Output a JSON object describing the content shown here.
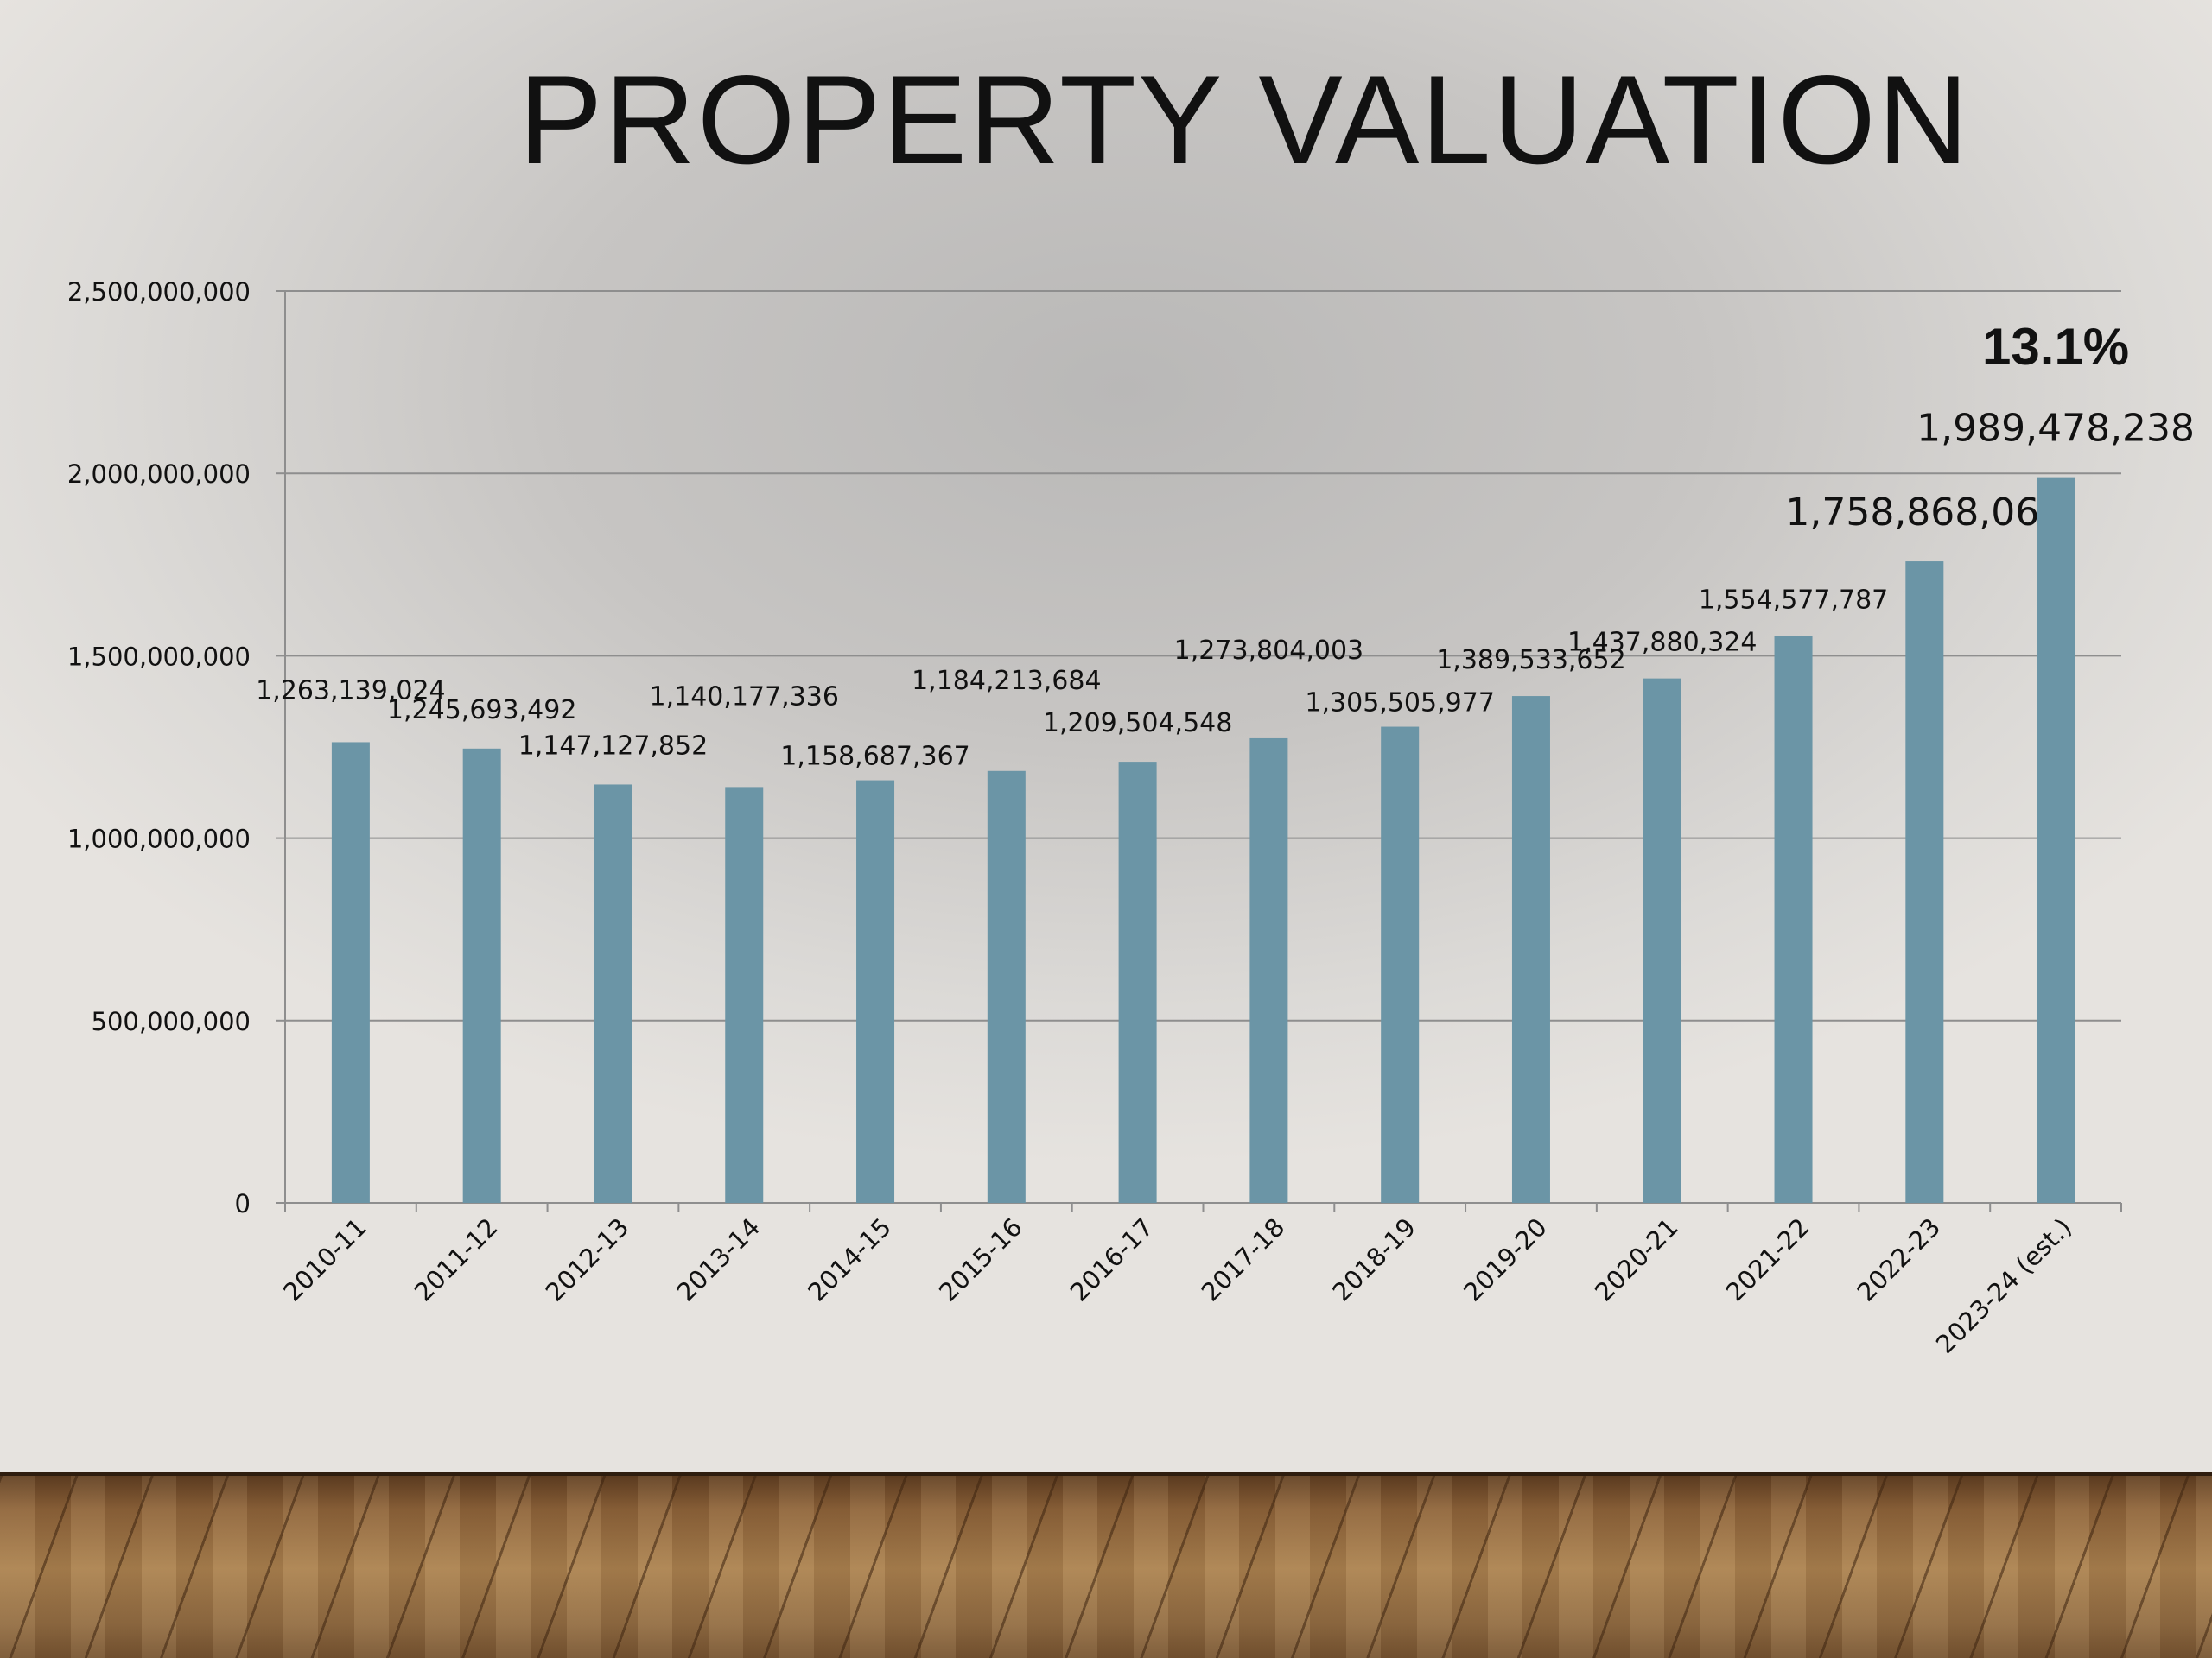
{
  "title": "PROPERTY VALUATION",
  "colors": {
    "bar": "#6b95a6",
    "grid": "#8e8e8e",
    "text": "#111111"
  },
  "chart_data": {
    "type": "bar",
    "categories": [
      "2010-11",
      "2011-12",
      "2012-13",
      "2013-14",
      "2014-15",
      "2015-16",
      "2016-17",
      "2017-18",
      "2018-19",
      "2019-20",
      "2020-21",
      "2021-22",
      "2022-23",
      "2023-24 (est.)"
    ],
    "values": [
      1263139024,
      1245693492,
      1147127852,
      1140177336,
      1158687367,
      1184213684,
      1209504548,
      1273804003,
      1305505977,
      1389533652,
      1437880324,
      1554577787,
      1758868062,
      1989478238
    ],
    "data_labels": [
      "1,263,139,024",
      "1,245,693,492",
      "1,147,127,852",
      "1,140,177,336",
      "1,158,687,367",
      "1,184,213,684",
      "1,209,504,548",
      "1,273,804,003",
      "1,305,505,977",
      "1,389,533,652",
      "1,437,880,324",
      "1,554,577,787",
      "1,758,868,062",
      "1,989,478,238"
    ],
    "annotation": "13.1%",
    "ylim": [
      0,
      2500000000
    ],
    "yticks": [
      0,
      500000000,
      1000000000,
      1500000000,
      2000000000,
      2500000000
    ],
    "ytick_labels": [
      "0",
      "500,000,000",
      "1,000,000,000",
      "1,500,000,000",
      "2,000,000,000",
      "2,500,000,000"
    ],
    "grid": true,
    "legend": "none"
  }
}
